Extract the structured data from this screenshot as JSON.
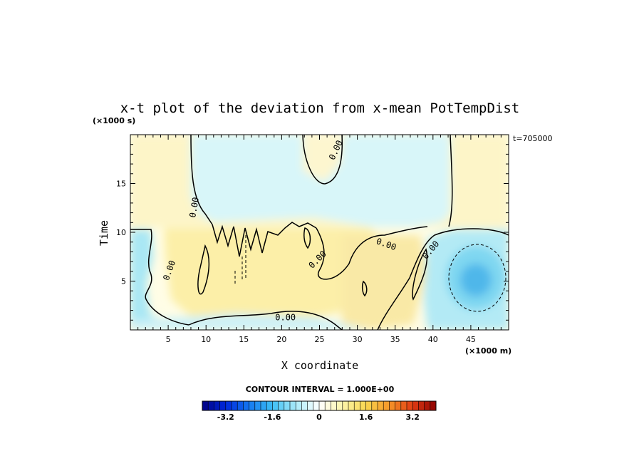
{
  "chart_data": {
    "type": "heatmap",
    "title": "x-t plot of the deviation from x-mean PotTempDist",
    "xlabel": "X coordinate",
    "ylabel": "Time",
    "x_unit": "(×1000 m)",
    "y_unit": "(×1000 s)",
    "time_stamp": "t=705000",
    "xlim": [
      0,
      50
    ],
    "ylim": [
      0,
      20
    ],
    "x_ticks": [
      5,
      10,
      15,
      20,
      25,
      30,
      35,
      40,
      45
    ],
    "y_ticks": [
      5,
      10,
      15
    ],
    "contour_interval_text": "CONTOUR INTERVAL = 1.000E+00",
    "contour_labels": [
      "0.00",
      "0.00",
      "0.00",
      "0.00",
      "0.00",
      "0.00",
      "0.00"
    ],
    "colorbar": {
      "min": -4,
      "max": 4,
      "step": 0.2,
      "tick_values": [
        -3.2,
        -1.6,
        0,
        1.6,
        3.2
      ],
      "tick_labels": [
        "-3.2",
        "-1.6",
        "0",
        "1.6",
        "3.2"
      ]
    },
    "regions": [
      {
        "name": "upper-left",
        "x": [
          0,
          8
        ],
        "y": [
          10.5,
          20
        ],
        "value": 0.3
      },
      {
        "name": "upper-middle",
        "x": [
          8,
          42
        ],
        "y": [
          10.5,
          20
        ],
        "value": -0.4
      },
      {
        "name": "upper-right",
        "x": [
          42,
          50
        ],
        "y": [
          10.5,
          20
        ],
        "value": 0.3
      },
      {
        "name": "lower-left-cold",
        "x": [
          0,
          5
        ],
        "y": [
          2,
          10
        ],
        "value": -0.8
      },
      {
        "name": "lower-middle-warm",
        "x": [
          8,
          30
        ],
        "y": [
          0,
          10
        ],
        "value": 0.5
      },
      {
        "name": "lower-right-cold-core",
        "x": [
          41,
          50
        ],
        "y": [
          2,
          9
        ],
        "value": -2.4
      }
    ]
  }
}
